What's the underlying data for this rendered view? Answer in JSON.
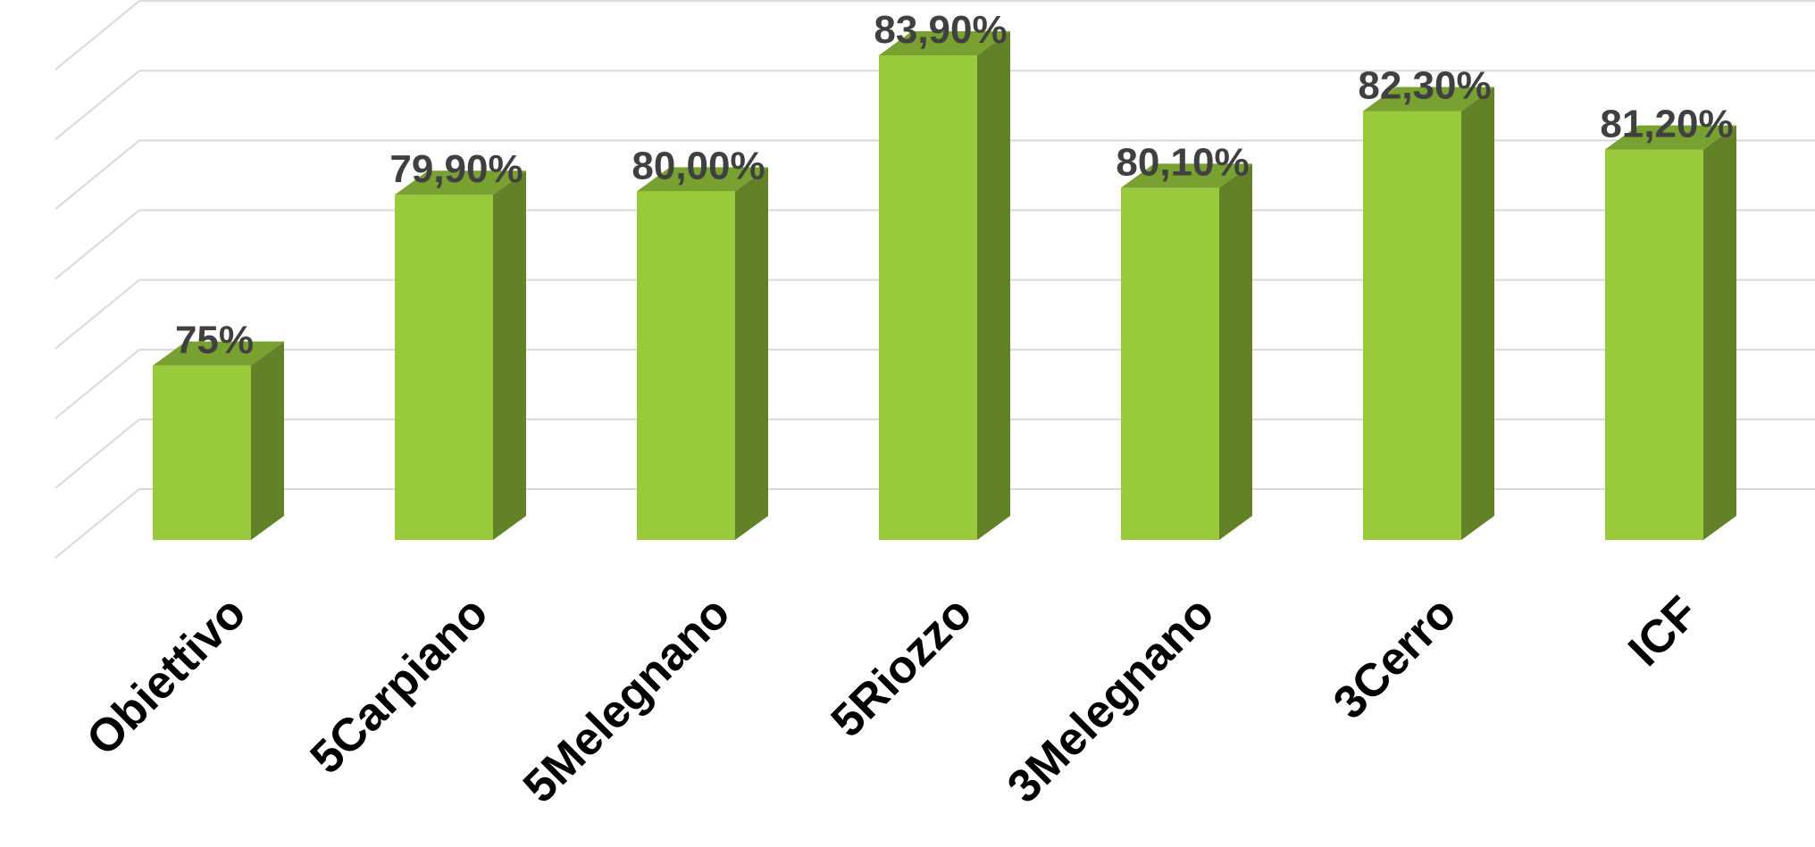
{
  "chart_data": {
    "type": "bar",
    "title": "",
    "xlabel": "",
    "ylabel": "",
    "categories": [
      "Obiettivo",
      "5Carpiano",
      "5Melegnano",
      "5Riozzo",
      "3Melegnano",
      "3Cerro",
      "ICF"
    ],
    "values": [
      75,
      79.9,
      80.0,
      83.9,
      80.1,
      82.3,
      81.2
    ],
    "data_labels": [
      "75%",
      "79,90%",
      "80,00%",
      "83,90%",
      "80,10%",
      "82,30%",
      "81,20%"
    ],
    "ylim": [
      70,
      85
    ],
    "gridlines": true,
    "legend": "none",
    "three_d": true,
    "colors": {
      "bar_front": "#99CA3B",
      "bar_top": "#79A131",
      "bar_side": "#638227",
      "gridline": "#D9D9D9",
      "label": "#404040"
    }
  }
}
